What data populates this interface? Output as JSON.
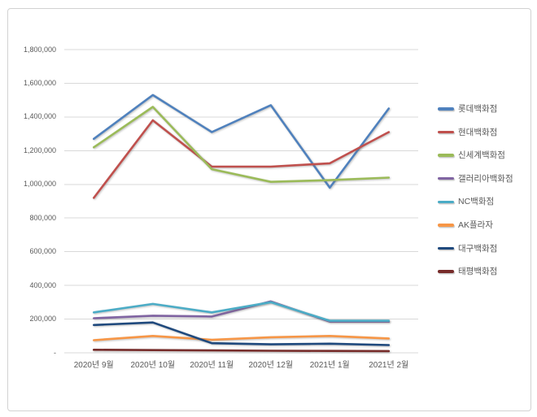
{
  "window": {
    "background": "#ffffff",
    "frame_border_color": "#d2d2d2"
  },
  "colors": {
    "gridline": "#d9d9d9",
    "axis_text": "#595959",
    "legend_text": "#595959"
  },
  "chart_data": {
    "type": "line",
    "title": "",
    "xlabel": "",
    "ylabel": "",
    "grid": true,
    "legend_position": "right",
    "ylim": [
      0,
      1800000
    ],
    "ytick_step": 200000,
    "ytick_labels": [
      "-",
      "200,000",
      "400,000",
      "600,000",
      "800,000",
      "1,000,000",
      "1,200,000",
      "1,400,000",
      "1,600,000",
      "1,800,000"
    ],
    "categories": [
      "2020년 9월",
      "2020년 10월",
      "2020년 11월",
      "2020년 12월",
      "2021년 1월",
      "2021년 2월"
    ],
    "series": [
      {
        "name": "롯데백화점",
        "color": "#4F81BD",
        "values": [
          1270000,
          1530000,
          1310000,
          1470000,
          980000,
          1450000
        ]
      },
      {
        "name": "현대백화점",
        "color": "#C0504D",
        "values": [
          920000,
          1380000,
          1105000,
          1105000,
          1125000,
          1310000
        ]
      },
      {
        "name": "신세계백화점",
        "color": "#9BBB59",
        "values": [
          1220000,
          1460000,
          1090000,
          1015000,
          1025000,
          1040000
        ]
      },
      {
        "name": "갤러리아백화점",
        "color": "#8064A2",
        "values": [
          205000,
          220000,
          215000,
          305000,
          185000,
          185000
        ]
      },
      {
        "name": "NC백화점",
        "color": "#4BACC6",
        "values": [
          240000,
          290000,
          240000,
          300000,
          190000,
          190000
        ]
      },
      {
        "name": "AK플라자",
        "color": "#F79646",
        "values": [
          75000,
          100000,
          77000,
          92000,
          100000,
          85000
        ]
      },
      {
        "name": "대구백화점",
        "color": "#1F497D",
        "values": [
          165000,
          180000,
          57000,
          50000,
          54000,
          46000
        ]
      },
      {
        "name": "태평백화점",
        "color": "#772C2A",
        "values": [
          18000,
          16000,
          14000,
          12000,
          11000,
          10000
        ]
      }
    ]
  }
}
